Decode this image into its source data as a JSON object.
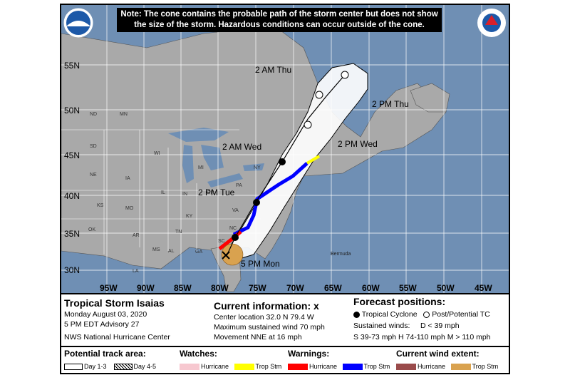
{
  "note": {
    "line1": "Note: The cone contains the probable path of the storm center but does not show",
    "line2": "the size of the storm. Hazardous conditions can occur outside of the cone."
  },
  "latitudes": [
    "55N",
    "50N",
    "45N",
    "40N",
    "35N",
    "30N"
  ],
  "longitudes": [
    "95W",
    "90W",
    "85W",
    "80W",
    "75W",
    "70W",
    "65W",
    "60W",
    "55W",
    "50W",
    "45W"
  ],
  "time_labels": {
    "thu_2am": "2 AM Thu",
    "thu_2pm": "2 PM Thu",
    "wed_2am": "2 AM Wed",
    "wed_2pm": "2 PM Wed",
    "tue_2pm": "2 PM Tue",
    "mon_5pm": "5 PM Mon"
  },
  "bermuda": "Bermuda",
  "states": [
    "ND",
    "MN",
    "WI",
    "MI",
    "SD",
    "NE",
    "IA",
    "IL",
    "IN",
    "OH",
    "KS",
    "MO",
    "KY",
    "OK",
    "TN",
    "AR",
    "MS",
    "AL",
    "GA",
    "LA",
    "NY",
    "PA",
    "VA",
    "NC",
    "SC"
  ],
  "storm": {
    "name": "Tropical Storm Isaias",
    "date": "Monday August 03, 2020",
    "advisory": "5 PM EDT Advisory 27",
    "center": "NWS National Hurricane Center"
  },
  "current": {
    "title": "Current information:",
    "marker": "x",
    "location": "Center location 32.0 N 79.4 W",
    "wind": "Maximum sustained wind 70 mph",
    "movement": "Movement NNE at 16 mph"
  },
  "forecast": {
    "title": "Forecast positions:",
    "tc": "Tropical Cyclone",
    "post": "Post/Potential TC",
    "sustained": "Sustained winds:",
    "d": "D < 39 mph",
    "scale": "S 39-73 mph  H 74-110 mph  M > 110 mph"
  },
  "legend": {
    "track_title": "Potential track area:",
    "day13": "Day 1-3",
    "day45": "Day 4-5",
    "watches_title": "Watches:",
    "watch_hurricane": "Hurricane",
    "watch_trop": "Trop Stm",
    "warnings_title": "Warnings:",
    "warn_hurricane": "Hurricane",
    "warn_trop": "Trop Stm",
    "wind_title": "Current wind extent:",
    "wind_hurricane": "Hurricane",
    "wind_trop": "Trop Stm"
  },
  "colors": {
    "ocean": "#6f8fb4",
    "land": "#a9a9a9",
    "watch_hurricane": "#f7c8d0",
    "watch_trop": "#ffff00",
    "warn_hurricane": "#ff0000",
    "warn_trop": "#0000ff",
    "wind_hurricane": "#9a4b4b",
    "wind_trop": "#d9a24f"
  },
  "logos": {
    "noaa": "NOAA",
    "nws": "NATIONAL WEATHER SERVICE"
  }
}
